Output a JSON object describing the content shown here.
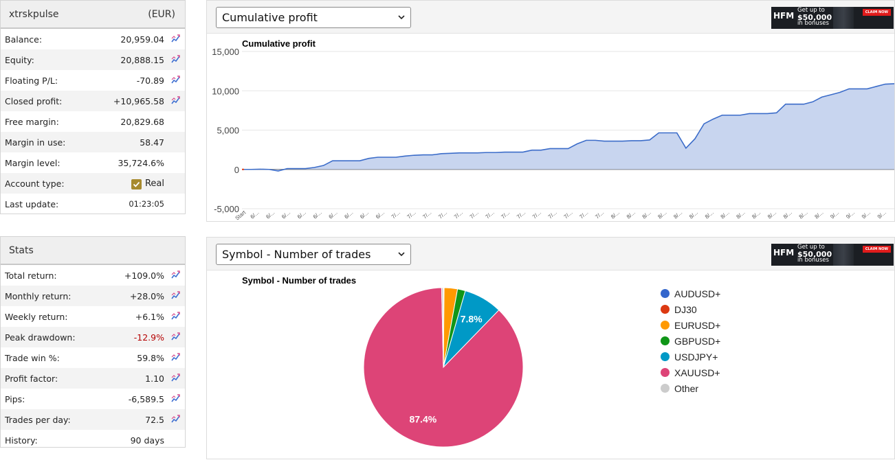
{
  "account": {
    "name": "xtrskpulse",
    "currency": "(EUR)",
    "rows": [
      {
        "label": "Balance:",
        "value": "20,959.04",
        "chart_icon": true
      },
      {
        "label": "Equity:",
        "value": "20,888.15",
        "chart_icon": true
      },
      {
        "label": "Floating P/L:",
        "value": "-70.89",
        "chart_icon": true
      },
      {
        "label": "Closed profit:",
        "value": "+10,965.58",
        "chart_icon": true
      },
      {
        "label": "Free margin:",
        "value": "20,829.68",
        "chart_icon": false
      },
      {
        "label": "Margin in use:",
        "value": "58.47",
        "chart_icon": false
      },
      {
        "label": "Margin level:",
        "value": "35,724.6%",
        "chart_icon": false
      },
      {
        "label": "Account type:",
        "value": "Real",
        "chart_icon": false
      },
      {
        "label": "Last update:",
        "value": "01:23:05",
        "chart_icon": false
      }
    ]
  },
  "stats": {
    "title": "Stats",
    "rows": [
      {
        "label": "Total return:",
        "value": "+109.0%",
        "chart_icon": true
      },
      {
        "label": "Monthly return:",
        "value": "+28.0%",
        "chart_icon": true
      },
      {
        "label": "Weekly return:",
        "value": "+6.1%",
        "chart_icon": true
      },
      {
        "label": "Peak drawdown:",
        "value": "-12.9%",
        "chart_icon": true
      },
      {
        "label": "Trade win %:",
        "value": "59.8%",
        "chart_icon": true
      },
      {
        "label": "Profit factor:",
        "value": "1.10",
        "chart_icon": true
      },
      {
        "label": "Pips:",
        "value": "-6,589.5",
        "chart_icon": true
      },
      {
        "label": "Trades per day:",
        "value": "72.5",
        "chart_icon": true
      },
      {
        "label": "History:",
        "value": "90 days",
        "chart_icon": false
      }
    ]
  },
  "ad": {
    "brand": "HFM",
    "line1": "Get up to",
    "line2": "$50,000",
    "line3": "in bonuses",
    "cta": "CLAIM NOW"
  },
  "profit_panel": {
    "selected": "Cumulative profit"
  },
  "symbol_panel": {
    "selected": "Symbol - Number of trades"
  },
  "colors": {
    "accent_line": "#3b6cc9",
    "area_fill": "#c5d3ee",
    "negative": "#b50000",
    "pen_icon": "#3f6fd1"
  },
  "chart_data": [
    {
      "type": "area",
      "title": "Cumulative profit",
      "ylim": [
        -5000,
        15000
      ],
      "yticks": [
        "15,000",
        "10,000",
        "5,000",
        "0",
        "-5,000"
      ],
      "x_first_label": "Start",
      "x_labels": [
        "6/...",
        "6/...",
        "6/...",
        "6/...",
        "6/...",
        "6/...",
        "6/...",
        "6/...",
        "6/...",
        "7/...",
        "7/...",
        "7/...",
        "7/...",
        "7/...",
        "7/...",
        "7/...",
        "7/...",
        "7/...",
        "7/...",
        "7/...",
        "7/...",
        "7/...",
        "7/...",
        "8/...",
        "8/...",
        "8/...",
        "8/...",
        "8/...",
        "8/...",
        "8/...",
        "8/...",
        "8/...",
        "8/...",
        "8/...",
        "8/...",
        "8/...",
        "8/...",
        "9/...",
        "9/...",
        "9/...",
        "9/..."
      ],
      "values": [
        0,
        0,
        30,
        0,
        -200,
        100,
        100,
        100,
        250,
        500,
        1100,
        1100,
        1100,
        1100,
        1400,
        1550,
        1550,
        1550,
        1700,
        1800,
        1850,
        1850,
        2000,
        2050,
        2100,
        2100,
        2100,
        2150,
        2150,
        2200,
        2200,
        2200,
        2450,
        2450,
        2650,
        2650,
        2650,
        3250,
        3700,
        3700,
        3600,
        3600,
        3600,
        3650,
        3650,
        3750,
        4650,
        4650,
        4650,
        2700,
        3900,
        5800,
        6400,
        6900,
        6900,
        6900,
        7100,
        7100,
        7100,
        7200,
        8300,
        8300,
        8300,
        8600,
        9200,
        9500,
        9800,
        10250,
        10250,
        10250,
        10550,
        10850,
        10900
      ]
    },
    {
      "type": "pie",
      "title": "Symbol - Number of trades",
      "series": [
        {
          "name": "AUDUSD+",
          "value": 0.1,
          "color": "#3366cc",
          "label": ""
        },
        {
          "name": "DJ30",
          "value": 0.05,
          "color": "#dc3912",
          "label": ""
        },
        {
          "name": "EURUSD+",
          "value": 2.7,
          "color": "#ff9900",
          "label": ""
        },
        {
          "name": "GBPUSD+",
          "value": 1.6,
          "color": "#109618",
          "label": ""
        },
        {
          "name": "USDJPY+",
          "value": 7.8,
          "color": "#0099c6",
          "label": "7.8%"
        },
        {
          "name": "XAUUSD+",
          "value": 87.4,
          "color": "#dd4477",
          "label": "87.4%"
        },
        {
          "name": "Other",
          "value": 0.35,
          "color": "#cccccc",
          "label": ""
        }
      ]
    }
  ]
}
